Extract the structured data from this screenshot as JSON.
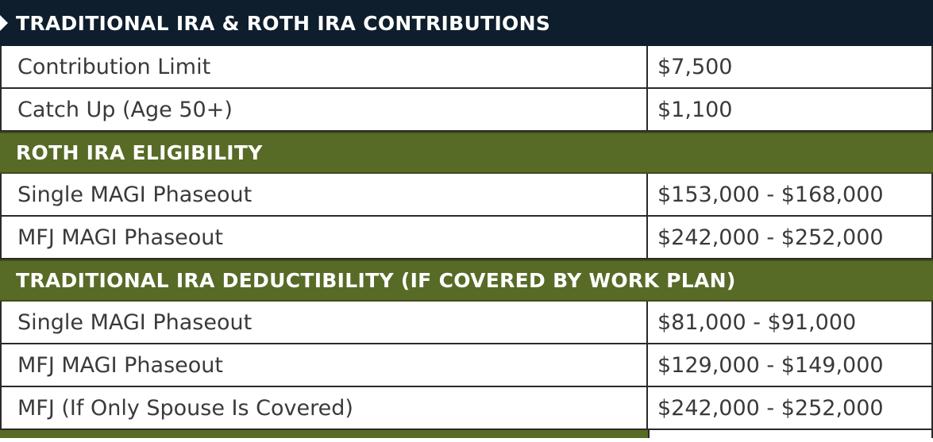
{
  "header": {
    "title": "TRADITIONAL IRA & ROTH IRA CONTRIBUTIONS"
  },
  "contributions": {
    "rows": [
      {
        "label": "Contribution Limit",
        "value": "$7,500"
      },
      {
        "label": "Catch Up (Age 50+)",
        "value": "$1,100"
      }
    ]
  },
  "roth_eligibility": {
    "title": "ROTH IRA ELIGIBILITY",
    "rows": [
      {
        "label": "Single MAGI Phaseout",
        "value": "$153,000 - $168,000"
      },
      {
        "label": "MFJ MAGI Phaseout",
        "value": "$242,000 - $252,000"
      }
    ]
  },
  "traditional_deductibility": {
    "title": "TRADITIONAL IRA DEDUCTIBILITY (IF COVERED BY WORK PLAN)",
    "rows": [
      {
        "label": "Single MAGI Phaseout",
        "value": "$81,000 - $91,000"
      },
      {
        "label": "MFJ MAGI Phaseout",
        "value": "$129,000 - $149,000"
      },
      {
        "label": "MFJ (If Only Spouse Is Covered)",
        "value": "$242,000 - $252,000"
      }
    ]
  },
  "colors": {
    "header_bg": "#0e1e2d",
    "section_bg": "#586b26",
    "text": "#3a3a3a"
  }
}
